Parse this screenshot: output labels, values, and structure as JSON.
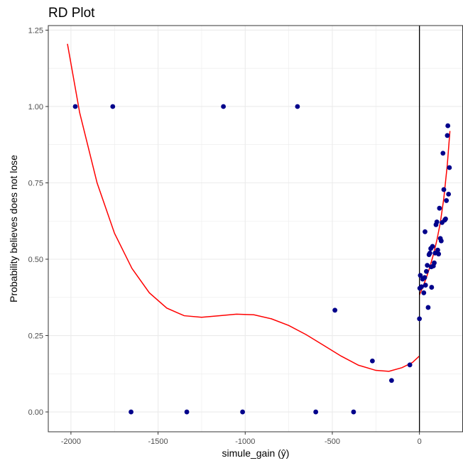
{
  "chart_data": {
    "type": "scatter",
    "title": "RD Plot",
    "xlabel": "simule_gain (ŷ)",
    "ylabel": "Probability believes does not lose",
    "xlim": [
      -2130,
      250
    ],
    "ylim": [
      -0.065,
      1.265
    ],
    "x_ticks": [
      -2000,
      -1500,
      -1000,
      -500,
      0
    ],
    "x_tick_labels": [
      "-2000",
      "-1500",
      "-1000",
      "-500",
      "0"
    ],
    "y_ticks": [
      0,
      0.25,
      0.5,
      0.75,
      1.0,
      1.25
    ],
    "y_tick_labels": [
      "0.00",
      "0.25",
      "0.50",
      "0.75",
      "1.00",
      "1.25"
    ],
    "grid": true,
    "cutoff_x": 0,
    "colors": {
      "points": "#00008b",
      "fit": "#ff0000",
      "cutoff": "#000000",
      "grid": "#ebebeb",
      "panel_border": "#333333"
    },
    "points": [
      {
        "x": -1975,
        "y": 1.0
      },
      {
        "x": -1760,
        "y": 1.0
      },
      {
        "x": -1125,
        "y": 1.0
      },
      {
        "x": -700,
        "y": 1.0
      },
      {
        "x": -1655,
        "y": 0.0
      },
      {
        "x": -1335,
        "y": 0.0
      },
      {
        "x": -1015,
        "y": 0.0
      },
      {
        "x": -595,
        "y": 0.0
      },
      {
        "x": -378,
        "y": 0.0
      },
      {
        "x": -485,
        "y": 0.333
      },
      {
        "x": -270,
        "y": 0.167
      },
      {
        "x": -160,
        "y": 0.103
      },
      {
        "x": -55,
        "y": 0.154
      },
      {
        "x": 0,
        "y": 0.305
      },
      {
        "x": 5,
        "y": 0.447
      },
      {
        "x": 12,
        "y": 0.41
      },
      {
        "x": 18,
        "y": 0.435
      },
      {
        "x": 25,
        "y": 0.39
      },
      {
        "x": 30,
        "y": 0.44
      },
      {
        "x": 35,
        "y": 0.415
      },
      {
        "x": 40,
        "y": 0.46
      },
      {
        "x": 45,
        "y": 0.48
      },
      {
        "x": 50,
        "y": 0.342
      },
      {
        "x": 55,
        "y": 0.515
      },
      {
        "x": 60,
        "y": 0.52
      },
      {
        "x": 65,
        "y": 0.535
      },
      {
        "x": 70,
        "y": 0.408
      },
      {
        "x": 75,
        "y": 0.542
      },
      {
        "x": 80,
        "y": 0.478
      },
      {
        "x": 85,
        "y": 0.488
      },
      {
        "x": 90,
        "y": 0.52
      },
      {
        "x": 95,
        "y": 0.613
      },
      {
        "x": 100,
        "y": 0.622
      },
      {
        "x": 105,
        "y": 0.53
      },
      {
        "x": 110,
        "y": 0.517
      },
      {
        "x": 115,
        "y": 0.667
      },
      {
        "x": 120,
        "y": 0.568
      },
      {
        "x": 125,
        "y": 0.56
      },
      {
        "x": 130,
        "y": 0.62
      },
      {
        "x": 135,
        "y": 0.847
      },
      {
        "x": 140,
        "y": 0.728
      },
      {
        "x": 145,
        "y": 0.628
      },
      {
        "x": 150,
        "y": 0.632
      },
      {
        "x": 155,
        "y": 0.692
      },
      {
        "x": 160,
        "y": 0.905
      },
      {
        "x": 163,
        "y": 0.937
      },
      {
        "x": 167,
        "y": 0.713
      },
      {
        "x": 172,
        "y": 0.8
      },
      {
        "x": 32,
        "y": 0.59
      },
      {
        "x": 68,
        "y": 0.475
      },
      {
        "x": 2,
        "y": 0.405
      }
    ],
    "fit_left": [
      {
        "x": -2020,
        "y": 1.205
      },
      {
        "x": -1950,
        "y": 0.98
      },
      {
        "x": -1850,
        "y": 0.75
      },
      {
        "x": -1750,
        "y": 0.585
      },
      {
        "x": -1650,
        "y": 0.47
      },
      {
        "x": -1550,
        "y": 0.39
      },
      {
        "x": -1450,
        "y": 0.34
      },
      {
        "x": -1350,
        "y": 0.315
      },
      {
        "x": -1250,
        "y": 0.31
      },
      {
        "x": -1150,
        "y": 0.315
      },
      {
        "x": -1050,
        "y": 0.32
      },
      {
        "x": -950,
        "y": 0.318
      },
      {
        "x": -850,
        "y": 0.305
      },
      {
        "x": -750,
        "y": 0.283
      },
      {
        "x": -650,
        "y": 0.253
      },
      {
        "x": -550,
        "y": 0.218
      },
      {
        "x": -450,
        "y": 0.183
      },
      {
        "x": -350,
        "y": 0.153
      },
      {
        "x": -250,
        "y": 0.136
      },
      {
        "x": -175,
        "y": 0.133
      },
      {
        "x": -100,
        "y": 0.145
      },
      {
        "x": -40,
        "y": 0.162
      },
      {
        "x": 0,
        "y": 0.183
      }
    ],
    "fit_right": [
      {
        "x": 0,
        "y": 0.383
      },
      {
        "x": 20,
        "y": 0.41
      },
      {
        "x": 40,
        "y": 0.44
      },
      {
        "x": 60,
        "y": 0.475
      },
      {
        "x": 80,
        "y": 0.515
      },
      {
        "x": 100,
        "y": 0.562
      },
      {
        "x": 120,
        "y": 0.62
      },
      {
        "x": 140,
        "y": 0.7
      },
      {
        "x": 160,
        "y": 0.81
      },
      {
        "x": 175,
        "y": 0.92
      }
    ]
  }
}
